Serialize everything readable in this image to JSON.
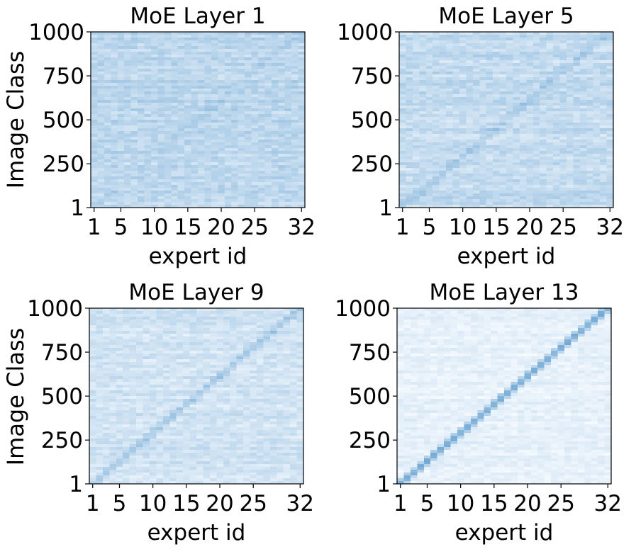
{
  "figure": {
    "shared_ylabel": "Image Class"
  },
  "chart_data": [
    {
      "type": "heatmap",
      "title": "MoE Layer 1",
      "xlabel": "expert id",
      "ylabel": "Image Class",
      "x_ticks": [
        1,
        5,
        10,
        15,
        20,
        25,
        32
      ],
      "y_ticks": [
        1,
        250,
        500,
        750,
        1000
      ],
      "xlim": [
        1,
        32
      ],
      "ylim": [
        1,
        1000
      ],
      "colormap": "Blues",
      "color_low": "#f7fbff",
      "color_high": "#4a90c8",
      "background_level": 0.34,
      "noise_level": 0.2,
      "diagonal_level": 0.07,
      "diagonal": "expert k most selected by image classes near (k-1)*1000/31; weak",
      "grid": false
    },
    {
      "type": "heatmap",
      "title": "MoE Layer 5",
      "xlabel": "expert id",
      "ylabel": "",
      "x_ticks": [
        1,
        5,
        10,
        15,
        20,
        25,
        32
      ],
      "y_ticks": [
        1,
        250,
        500,
        750,
        1000
      ],
      "xlim": [
        1,
        32
      ],
      "ylim": [
        1,
        1000
      ],
      "colormap": "Blues",
      "color_low": "#f7fbff",
      "color_high": "#4a90c8",
      "background_level": 0.3,
      "noise_level": 0.2,
      "diagonal_level": 0.18,
      "diagonal": "expert k most selected by image classes near (k-1)*1000/31; moderate",
      "grid": false
    },
    {
      "type": "heatmap",
      "title": "MoE Layer 9",
      "xlabel": "expert id",
      "ylabel": "Image Class",
      "x_ticks": [
        1,
        5,
        10,
        15,
        20,
        25,
        32
      ],
      "y_ticks": [
        1,
        250,
        500,
        750,
        1000
      ],
      "xlim": [
        1,
        32
      ],
      "ylim": [
        1,
        1000
      ],
      "colormap": "Blues",
      "color_low": "#f7fbff",
      "color_high": "#4a90c8",
      "background_level": 0.22,
      "noise_level": 0.17,
      "diagonal_level": 0.3,
      "diagonal": "expert k most selected by image classes near (k-1)*1000/31; clear",
      "grid": false
    },
    {
      "type": "heatmap",
      "title": "MoE Layer 13",
      "xlabel": "expert id",
      "ylabel": "",
      "x_ticks": [
        1,
        5,
        10,
        15,
        20,
        25,
        32
      ],
      "y_ticks": [
        1,
        250,
        500,
        750,
        1000
      ],
      "xlim": [
        1,
        32
      ],
      "ylim": [
        1,
        1000
      ],
      "colormap": "Blues",
      "color_low": "#f7fbff",
      "color_high": "#4a90c8",
      "background_level": 0.1,
      "noise_level": 0.12,
      "diagonal_level": 0.75,
      "diagonal": "expert k most selected by image classes near (k-1)*1000/31; sharp",
      "grid": false
    }
  ]
}
